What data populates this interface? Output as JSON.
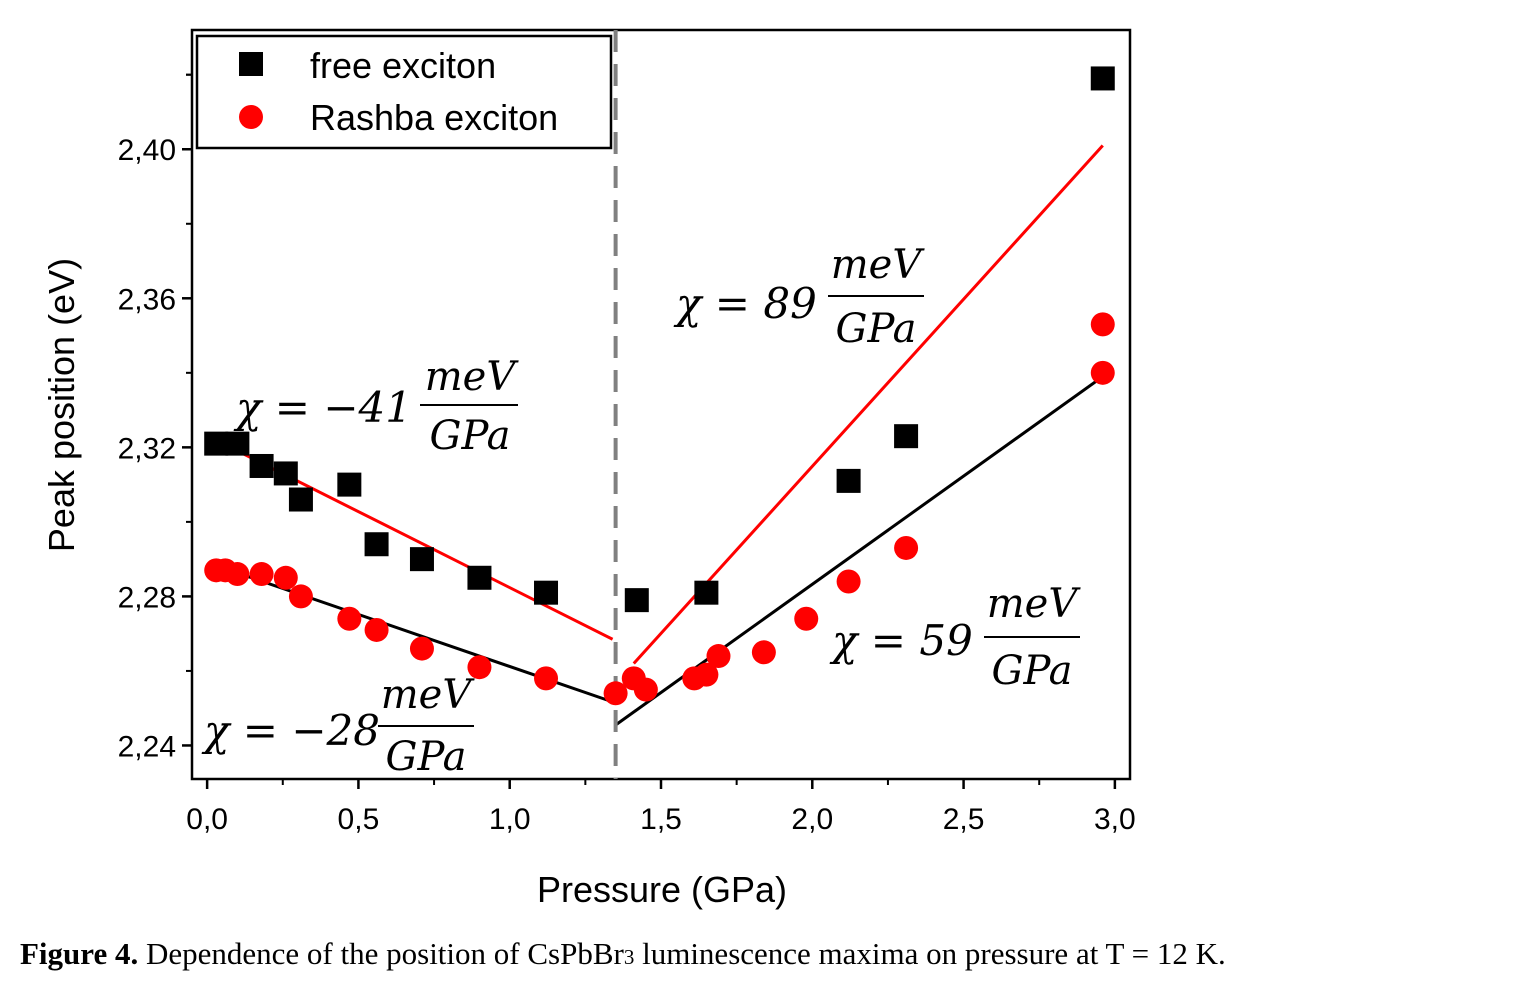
{
  "chart_data": {
    "type": "scatter",
    "xlabel": "Pressure (GPa)",
    "ylabel": "Peak position (eV)",
    "xlim": [
      -0.05,
      3.05
    ],
    "ylim": [
      2.231,
      2.432
    ],
    "x_ticks": [
      "0,0",
      "0,5",
      "1,0",
      "1,5",
      "2,0",
      "2,5",
      "3,0"
    ],
    "x_tick_values": [
      0,
      0.5,
      1.0,
      1.5,
      2.0,
      2.5,
      3.0
    ],
    "y_ticks": [
      "2,24",
      "2,28",
      "2,32",
      "2,36",
      "2,40"
    ],
    "y_tick_values": [
      2.24,
      2.28,
      2.32,
      2.36,
      2.4
    ],
    "legend_position": "top-left",
    "series": [
      {
        "name": "free exciton",
        "marker": "square",
        "color": "#000000",
        "x": [
          0.03,
          0.1,
          0.18,
          0.26,
          0.31,
          0.47,
          0.56,
          0.71,
          0.9,
          1.12,
          1.42,
          1.65,
          2.12,
          2.31,
          2.96
        ],
        "y": [
          2.321,
          2.321,
          2.315,
          2.313,
          2.306,
          2.31,
          2.294,
          2.29,
          2.285,
          2.281,
          2.279,
          2.281,
          2.311,
          2.323,
          2.419
        ]
      },
      {
        "name": "Rashba exciton",
        "marker": "circle",
        "color": "#ff0000",
        "x": [
          0.03,
          0.06,
          0.1,
          0.18,
          0.26,
          0.31,
          0.47,
          0.56,
          0.71,
          0.9,
          1.12,
          1.35,
          1.41,
          1.45,
          1.61,
          1.65,
          1.69,
          1.84,
          1.98,
          2.12,
          2.31,
          2.96,
          2.96
        ],
        "y": [
          2.287,
          2.287,
          2.286,
          2.286,
          2.285,
          2.28,
          2.274,
          2.271,
          2.266,
          2.261,
          2.258,
          2.254,
          2.258,
          2.255,
          2.258,
          2.259,
          2.264,
          2.265,
          2.274,
          2.284,
          2.293,
          2.353,
          2.34
        ]
      }
    ],
    "fit_lines": [
      {
        "color": "#ff0000",
        "x": [
          0.04,
          1.34
        ],
        "y": [
          2.3215,
          2.2685
        ]
      },
      {
        "color": "#000000",
        "x": [
          0.04,
          1.34
        ],
        "y": [
          2.288,
          2.2517
        ]
      },
      {
        "color": "#ff0000",
        "x": [
          1.41,
          2.96
        ],
        "y": [
          2.262,
          2.401
        ]
      },
      {
        "color": "#000000",
        "x": [
          1.35,
          2.96
        ],
        "y": [
          2.2455,
          2.339
        ]
      }
    ],
    "vline": {
      "x": 1.35,
      "color": "#808080",
      "style": "dashed"
    },
    "annotations": [
      {
        "lhs": "χ = −41",
        "num": "meV",
        "den": "GPa"
      },
      {
        "lhs": "χ = −28",
        "num": "meV",
        "den": "GPa"
      },
      {
        "lhs": "χ = 89",
        "num": "meV",
        "den": "GPa"
      },
      {
        "lhs": "χ = 59",
        "num": "meV",
        "den": "GPa"
      }
    ]
  },
  "caption": {
    "label": "Figure 4.",
    "text_before": " Dependence of the position of CsPbBr",
    "subscript": "3",
    "text_after": " luminescence maxima on pressure at T = 12 K."
  }
}
